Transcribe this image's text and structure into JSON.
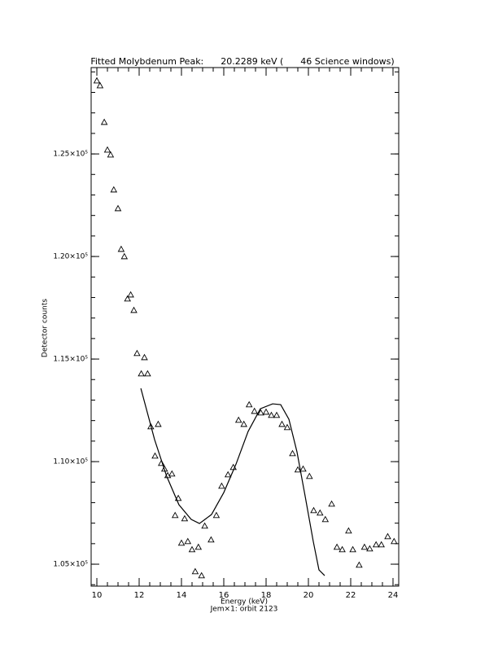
{
  "chart_data": {
    "type": "scatter-fit",
    "title": "Fitted Molybdenum Peak:      20.2289 keV (      46 Science windows)",
    "x_label": "Energy (keV)",
    "y_label": "Detector counts",
    "subtitle": "Jem×1: orbit 2123",
    "xlim": [
      9.73,
      24.27
    ],
    "ylim": [
      103930,
      129210
    ],
    "xticks": [
      10,
      12,
      14,
      16,
      18,
      20,
      22,
      24
    ],
    "yticks": [
      {
        "value": 105000,
        "label": "1.05×10⁵"
      },
      {
        "value": 110000,
        "label": "1.10×10⁵"
      },
      {
        "value": 115000,
        "label": "1.15×10⁵"
      },
      {
        "value": 120000,
        "label": "1.20×10⁵"
      },
      {
        "value": 125000,
        "label": "1.25×10⁵"
      }
    ],
    "xminor": 4,
    "yminor": 5,
    "series": [
      {
        "marker": "triangle",
        "color": "#000000",
        "x": [
          10.0,
          10.15,
          10.35,
          10.5,
          10.65,
          10.8,
          11.0,
          11.15,
          11.3,
          11.45,
          11.6,
          11.75,
          11.9,
          12.1,
          12.25,
          12.4,
          12.55,
          12.75,
          12.9,
          13.05,
          13.2,
          13.35,
          13.55,
          13.7,
          13.85,
          14.0,
          14.15,
          14.3,
          14.5,
          14.65,
          14.8,
          14.95,
          15.1,
          15.4,
          15.65,
          15.9,
          16.2,
          16.45,
          16.7,
          16.95,
          17.2,
          17.45,
          17.75,
          18.0,
          18.25,
          18.5,
          18.75,
          19.0,
          19.25,
          19.5,
          19.75,
          20.05,
          20.25,
          20.55,
          20.8,
          21.1,
          21.35,
          21.6,
          21.9,
          22.1,
          22.4,
          22.65,
          22.9,
          23.2,
          23.45,
          23.75,
          24.05
        ],
        "values": [
          128571,
          128333,
          126548,
          125198,
          124960,
          123254,
          122341,
          120357,
          120000,
          117937,
          118135,
          117381,
          115278,
          114286,
          115079,
          114286,
          111706,
          110278,
          111825,
          109921,
          109643,
          109325,
          109405,
          107381,
          108214,
          106032,
          107222,
          106111,
          105714,
          104643,
          105833,
          104444,
          106865,
          106190,
          107381,
          108810,
          109365,
          109722,
          112024,
          111825,
          112778,
          112460,
          112381,
          112420,
          112262,
          112262,
          111825,
          111667,
          110397,
          109603,
          109643,
          109286,
          107619,
          107500,
          107183,
          107937,
          105833,
          105714,
          106627,
          105714,
          104960,
          105833,
          105754,
          105952,
          105952,
          106349,
          106111
        ]
      },
      {
        "marker": "line",
        "color": "#000000",
        "x": [
          12.08,
          12.73,
          13.3,
          13.88,
          14.46,
          14.85,
          15.42,
          16.0,
          16.58,
          17.15,
          17.73,
          18.31,
          18.69,
          19.08,
          19.46,
          19.85,
          20.23,
          20.5,
          20.77
        ],
        "values": [
          113571,
          111071,
          109286,
          107897,
          107183,
          106984,
          107421,
          108492,
          109881,
          111468,
          112579,
          112817,
          112778,
          112063,
          110476,
          108294,
          106111,
          104722,
          104444
        ]
      }
    ]
  }
}
